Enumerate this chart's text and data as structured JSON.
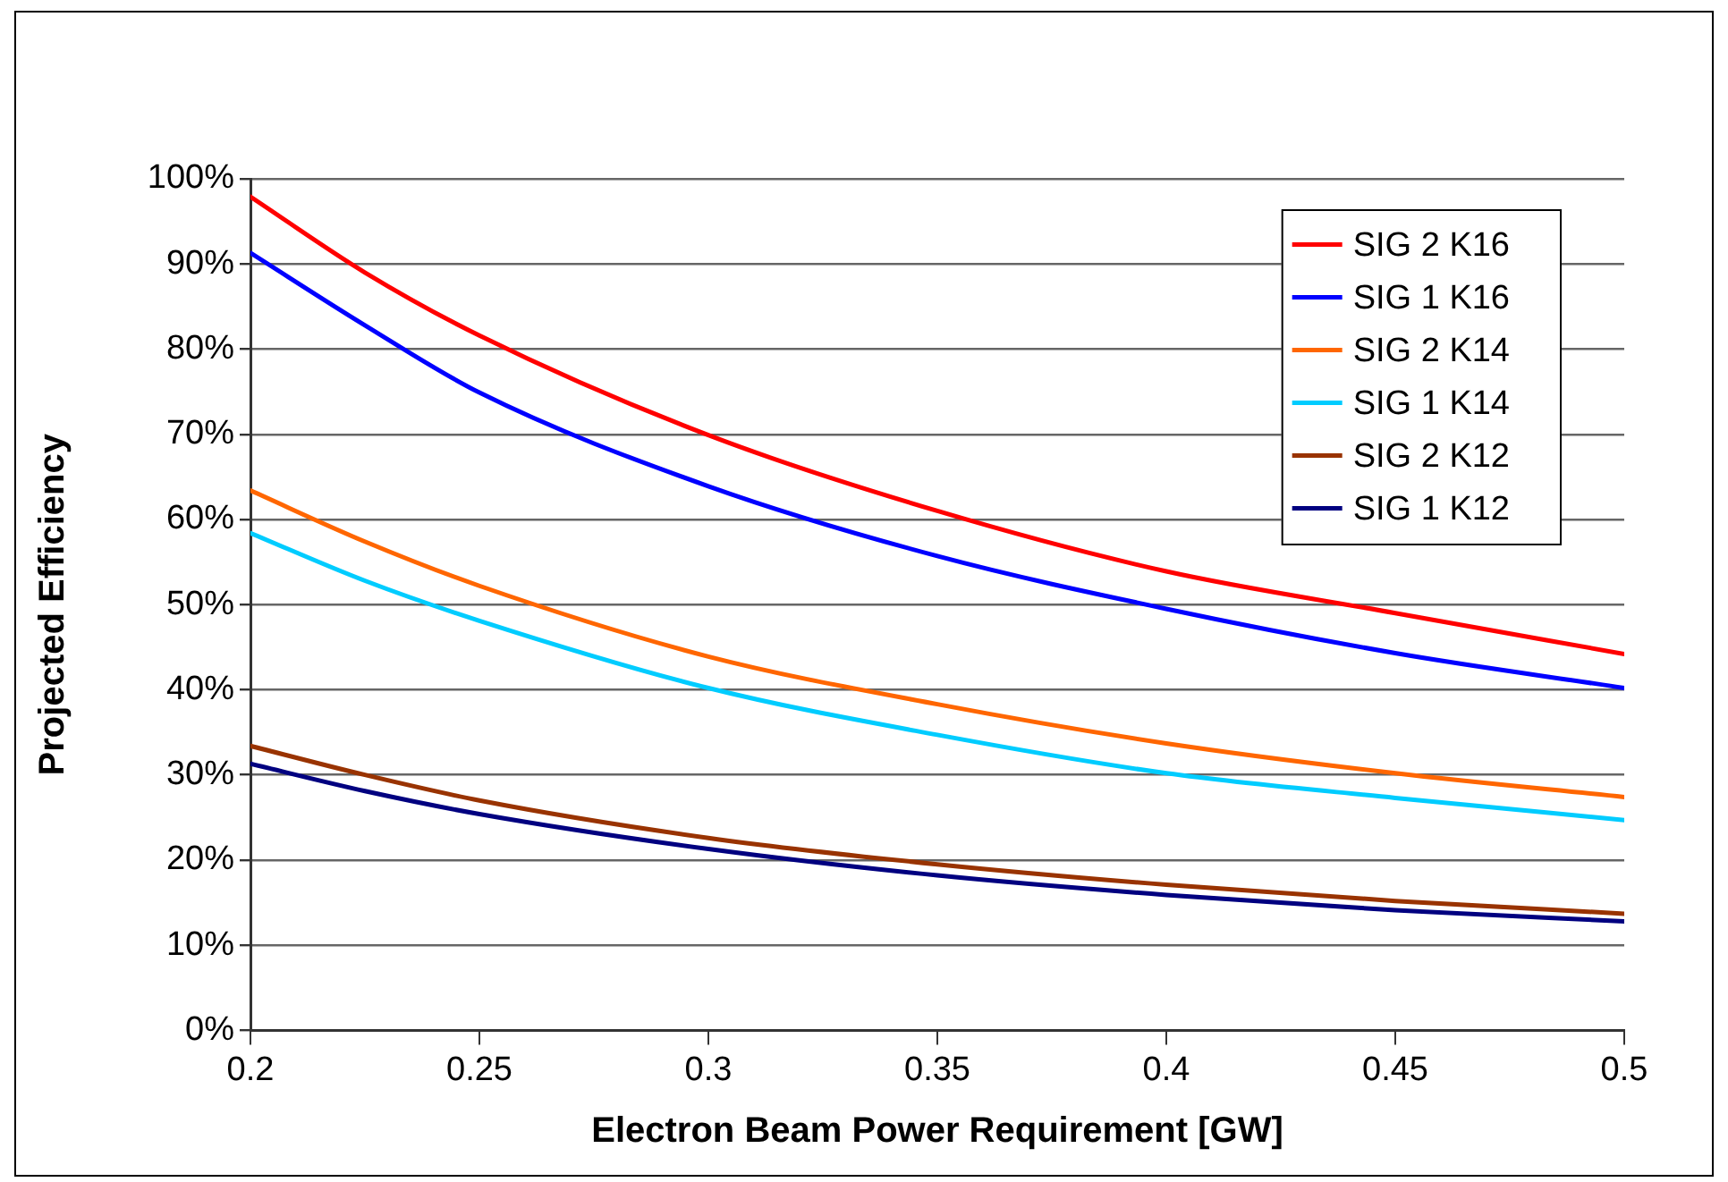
{
  "chart_data": {
    "type": "line",
    "xlabel": "Electron Beam Power Requirement [GW]",
    "ylabel": "Projected Efficiency",
    "x": [
      0.2,
      0.225,
      0.25,
      0.3,
      0.35,
      0.4,
      0.45,
      0.5
    ],
    "xlim": [
      0.2,
      0.5
    ],
    "xticks": [
      0.2,
      0.25,
      0.3,
      0.35,
      0.4,
      0.45,
      0.5
    ],
    "ylim": [
      0,
      100
    ],
    "yticks": [
      {
        "value": 0,
        "label": "0%"
      },
      {
        "value": 10,
        "label": "10%"
      },
      {
        "value": 20,
        "label": "20%"
      },
      {
        "value": 30,
        "label": "30%"
      },
      {
        "value": 40,
        "label": "40%"
      },
      {
        "value": 50,
        "label": "50%"
      },
      {
        "value": 60,
        "label": "60%"
      },
      {
        "value": 70,
        "label": "70%"
      },
      {
        "value": 80,
        "label": "80%"
      },
      {
        "value": 90,
        "label": "90%"
      },
      {
        "value": 100,
        "label": "100%"
      }
    ],
    "grid": "y",
    "legend": "top right",
    "marker": "none",
    "line_style": "solid",
    "series": [
      {
        "name": "SIG 2 K16",
        "color": "#ff0000",
        "values": [
          97.9,
          89.0,
          81.6,
          69.9,
          61.0,
          53.9,
          49.0,
          44.2
        ]
      },
      {
        "name": "SIG 1 K16",
        "color": "#0000ff",
        "values": [
          91.3,
          82.8,
          74.9,
          63.9,
          55.7,
          49.5,
          44.3,
          40.2
        ]
      },
      {
        "name": "SIG 2 K14",
        "color": "#ff6600",
        "values": [
          63.4,
          57.4,
          52.2,
          43.9,
          38.3,
          33.7,
          30.2,
          27.4
        ]
      },
      {
        "name": "SIG 1 K14",
        "color": "#00ccff",
        "values": [
          58.4,
          52.8,
          48.1,
          40.2,
          34.7,
          30.2,
          27.3,
          24.7
        ]
      },
      {
        "name": "SIG 2 K12",
        "color": "#993300",
        "values": [
          33.4,
          30.0,
          27.0,
          22.6,
          19.5,
          17.1,
          15.2,
          13.7
        ]
      },
      {
        "name": "SIG 1 K12",
        "color": "#000080",
        "values": [
          31.3,
          28.1,
          25.4,
          21.3,
          18.2,
          15.9,
          14.1,
          12.8
        ]
      }
    ]
  }
}
